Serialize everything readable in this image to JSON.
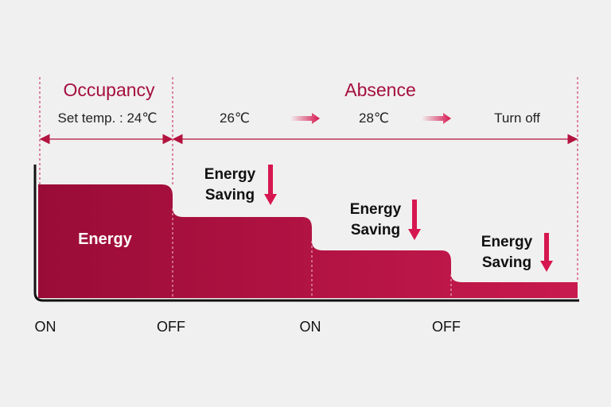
{
  "header": {
    "occupancy": "Occupancy",
    "absence": "Absence"
  },
  "stages": [
    "Set temp. : 24℃",
    "26℃",
    "28℃",
    "Turn off"
  ],
  "energy_label": "Energy",
  "savings": [
    [
      "Energy",
      "Saving"
    ],
    [
      "Energy",
      "Saving"
    ],
    [
      "Energy",
      "Saving"
    ]
  ],
  "x_labels": [
    "ON",
    "OFF",
    "ON",
    "OFF"
  ]
}
